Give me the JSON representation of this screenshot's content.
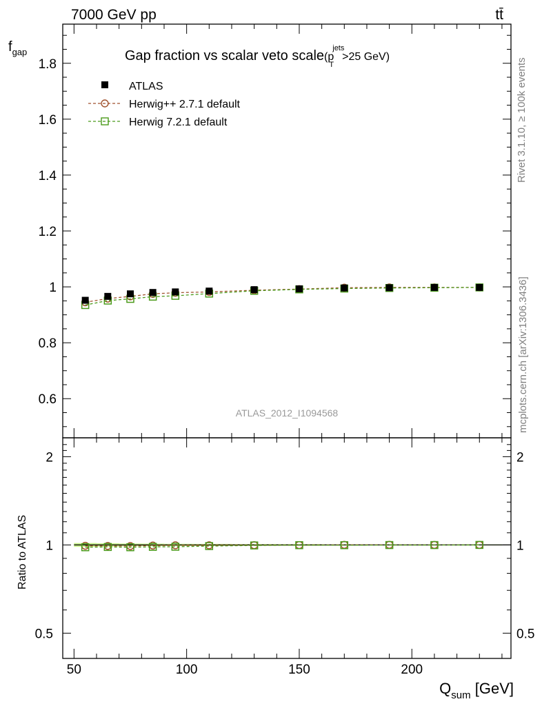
{
  "header": {
    "energy": "7000 GeV pp",
    "process": "tt̄"
  },
  "side_text": {
    "rivet": "Rivet 3.1.10, ≥ 100k events",
    "mcplots": "mcplots.cern.ch [arXiv:1306.3436]"
  },
  "analysis_id": "ATLAS_2012_I1094568",
  "colors": {
    "data": "#000000",
    "herwigpp": "#a0522d",
    "herwig7": "#4a9a1a",
    "band": "#c8f08c"
  },
  "chart_data": [
    {
      "type": "scatter",
      "title_main": "Gap fraction vs scalar veto scale",
      "title_sup": "jets",
      "title_sub": "T",
      "title_tail": ">25 GeV)",
      "title_open": "(p",
      "ylabel_main": "f",
      "ylabel_sub": "gap",
      "xlim": [
        45,
        244
      ],
      "ylim": [
        0.46,
        1.94
      ],
      "yticks": [
        0.6,
        0.8,
        1,
        1.2,
        1.4,
        1.6,
        1.8
      ],
      "ytick_labels": [
        "0.6",
        "0.8",
        "1",
        "1.2",
        "1.4",
        "1.6",
        "1.8"
      ],
      "x": [
        55,
        65,
        75,
        85,
        95,
        110,
        130,
        150,
        170,
        190,
        210,
        230
      ],
      "series": [
        {
          "name": "ATLAS",
          "marker": "square-filled",
          "values": [
            0.952,
            0.966,
            0.975,
            0.98,
            0.982,
            0.985,
            0.99,
            0.993,
            0.996,
            0.997,
            0.998,
            0.998
          ],
          "errors": [
            0.01,
            0.009,
            0.008,
            0.007,
            0.007,
            0.006,
            0.006,
            0.005,
            0.005,
            0.004,
            0.004,
            0.004
          ]
        },
        {
          "name": "Herwig++ 2.7.1 default",
          "marker": "circle-open",
          "values": [
            0.945,
            0.958,
            0.966,
            0.975,
            0.979,
            0.982,
            0.988,
            0.992,
            0.997,
            0.998,
            0.998,
            0.998
          ]
        },
        {
          "name": "Herwig 7.2.1 default",
          "marker": "square-open",
          "values": [
            0.935,
            0.951,
            0.957,
            0.965,
            0.968,
            0.976,
            0.986,
            0.991,
            0.994,
            0.996,
            0.997,
            0.998
          ]
        }
      ]
    },
    {
      "type": "scatter",
      "ylabel": "Ratio to ATLAS",
      "xlabel_main": "Q",
      "xlabel_sub": "sum",
      "xlabel_tail": " [GeV]",
      "xlim": [
        45,
        244
      ],
      "ylim": [
        0.41,
        2.32
      ],
      "log_y": true,
      "yticks": [
        0.5,
        1,
        2
      ],
      "ytick_labels": [
        "0.5",
        "1",
        "2"
      ],
      "xticks": [
        50,
        100,
        150,
        200
      ],
      "xtick_labels": [
        "50",
        "100",
        "150",
        "200"
      ],
      "x": [
        55,
        65,
        75,
        85,
        95,
        110,
        130,
        150,
        170,
        190,
        210,
        230
      ],
      "band": [
        0.015,
        0.013,
        0.011,
        0.01,
        0.009,
        0.008,
        0.007,
        0.006,
        0.005,
        0.004,
        0.004,
        0.004
      ],
      "series": [
        {
          "name": "Herwig++ 2.7.1 default",
          "marker": "circle-open",
          "values": [
            0.993,
            0.992,
            0.991,
            0.995,
            0.997,
            0.997,
            0.998,
            0.999,
            1.001,
            1.001,
            1.0,
            1.0
          ]
        },
        {
          "name": "Herwig 7.2.1 default",
          "marker": "square-open",
          "values": [
            0.982,
            0.984,
            0.982,
            0.985,
            0.986,
            0.991,
            0.996,
            0.998,
            0.998,
            0.999,
            0.999,
            1.0
          ]
        }
      ]
    }
  ]
}
